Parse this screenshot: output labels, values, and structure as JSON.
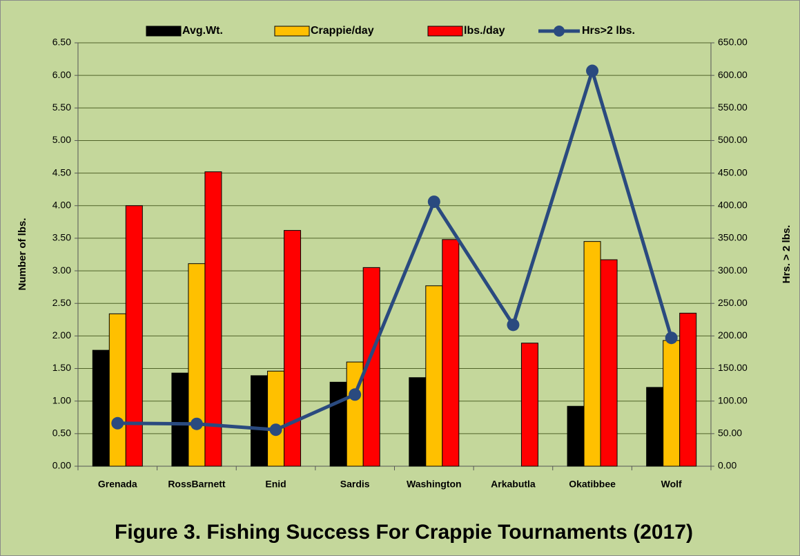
{
  "chart_data": {
    "type": "bar",
    "title": "Figure 3.  Fishing Success For Crappie Tournaments (2017)",
    "y_label": "Number of lbs.",
    "y2_label": "Hrs. > 2 lbs.",
    "categories": [
      "Grenada",
      "RossBarnett",
      "Enid",
      "Sardis",
      "Washington",
      "Arkabutla",
      "Okatibbee",
      "Wolf"
    ],
    "series": [
      {
        "name": "Avg.Wt.",
        "type": "bar",
        "color": "#000000",
        "values": [
          1.78,
          1.43,
          1.39,
          1.29,
          1.36,
          null,
          0.92,
          1.21
        ]
      },
      {
        "name": "Crappie/day",
        "type": "bar",
        "color": "#ffc000",
        "values": [
          2.34,
          3.11,
          1.46,
          1.6,
          2.77,
          null,
          3.45,
          1.93
        ]
      },
      {
        "name": "lbs./day",
        "type": "bar",
        "color": "#ff0000",
        "values": [
          4.0,
          4.52,
          3.62,
          3.05,
          3.48,
          1.89,
          3.17,
          2.35
        ]
      },
      {
        "name": "Hrs>2 lbs.",
        "type": "line",
        "axis": "y2",
        "color": "#2a4a7f",
        "values": [
          66,
          65,
          56,
          110,
          406,
          217,
          607,
          197
        ]
      }
    ],
    "ylim": [
      0,
      6.5
    ],
    "yticks": [
      {
        "value": 0,
        "label": "0.00"
      },
      {
        "value": 0.5,
        "label": "0.50"
      },
      {
        "value": 1,
        "label": "1.00"
      },
      {
        "value": 1.5,
        "label": "1.50"
      },
      {
        "value": 2,
        "label": "2.00"
      },
      {
        "value": 2.5,
        "label": "2.50"
      },
      {
        "value": 3,
        "label": "3.00"
      },
      {
        "value": 3.5,
        "label": "3.50"
      },
      {
        "value": 4,
        "label": "4.00"
      },
      {
        "value": 4.5,
        "label": "4.50"
      },
      {
        "value": 5,
        "label": "5.00"
      },
      {
        "value": 5.5,
        "label": "5.50"
      },
      {
        "value": 6,
        "label": "6.00"
      },
      {
        "value": 6.5,
        "label": "6.50"
      }
    ],
    "y2lim": [
      0,
      650
    ],
    "y2ticks": [
      {
        "value": 0,
        "label": "0.00"
      },
      {
        "value": 50,
        "label": "50.00"
      },
      {
        "value": 100,
        "label": "100.00"
      },
      {
        "value": 150,
        "label": "150.00"
      },
      {
        "value": 200,
        "label": "200.00"
      },
      {
        "value": 250,
        "label": "250.00"
      },
      {
        "value": 300,
        "label": "300.00"
      },
      {
        "value": 350,
        "label": "350.00"
      },
      {
        "value": 400,
        "label": "400.00"
      },
      {
        "value": 450,
        "label": "450.00"
      },
      {
        "value": 500,
        "label": "500.00"
      },
      {
        "value": 550,
        "label": "550.00"
      },
      {
        "value": 600,
        "label": "600.00"
      },
      {
        "value": 650,
        "label": "650.00"
      }
    ],
    "grid": true,
    "legend": "top"
  }
}
